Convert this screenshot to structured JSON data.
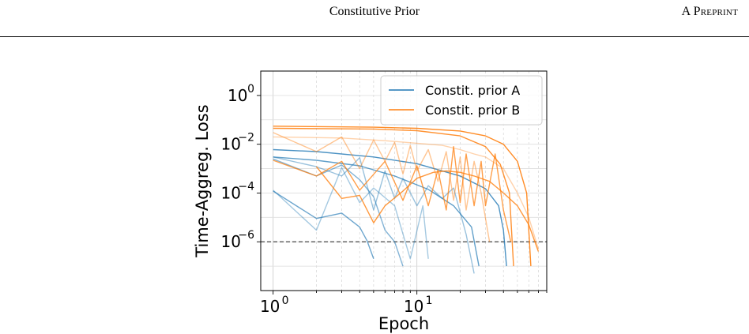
{
  "header": {
    "title": "Constitutive Prior",
    "tag": "A Preprint"
  },
  "chart_data": {
    "type": "line",
    "xlabel": "Epoch",
    "ylabel": "Time-Aggreg. Loss",
    "xscale": "log",
    "yscale": "log",
    "xlim": [
      0.82,
      80
    ],
    "ylim": [
      1e-08,
      10
    ],
    "x_ticks": [
      {
        "value": 1,
        "base": "10",
        "exp": "0"
      },
      {
        "value": 10,
        "base": "10",
        "exp": "1"
      }
    ],
    "y_ticks": [
      {
        "value": 1,
        "base": "10",
        "exp": "0"
      },
      {
        "value": 0.01,
        "base": "10",
        "exp": "−2"
      },
      {
        "value": 0.0001,
        "base": "10",
        "exp": "−4"
      },
      {
        "value": 1e-06,
        "base": "10",
        "exp": "−6"
      }
    ],
    "grid": true,
    "legend_position": "top-right",
    "reference_line": {
      "y": 1e-06,
      "style": "dashed",
      "color": "#333333"
    },
    "colors": {
      "A": "#1f77b4",
      "B": "#ff7f0e"
    },
    "series": [
      {
        "name": "Constit. prior A",
        "color": "#1f77b4",
        "opacity": 0.8,
        "x": [
          1,
          2,
          5,
          10,
          20,
          30,
          37,
          40,
          42
        ],
        "y": [
          0.006,
          0.005,
          0.003,
          0.0016,
          0.0005,
          0.00015,
          3e-05,
          3e-06,
          1e-07
        ]
      },
      {
        "name": "Constit. prior A",
        "color": "#1f77b4",
        "opacity": 0.7,
        "x": [
          1,
          2,
          4,
          7,
          12,
          18,
          24,
          27
        ],
        "y": [
          0.003,
          0.0022,
          0.0013,
          0.0005,
          0.00014,
          3e-05,
          4e-06,
          1e-07
        ]
      },
      {
        "name": "Constit. prior A",
        "color": "#1f77b4",
        "opacity": 0.55,
        "x": [
          1,
          2,
          3,
          4,
          5,
          6,
          7,
          8
        ],
        "y": [
          0.0025,
          0.0005,
          0.0014,
          0.00035,
          7e-05,
          3e-06,
          1e-06,
          1e-07
        ]
      },
      {
        "name": "Constit. prior A",
        "color": "#1f77b4",
        "opacity": 0.4,
        "x": [
          1,
          2,
          3,
          4,
          5,
          7,
          9,
          11,
          12
        ],
        "y": [
          0.00013,
          3e-06,
          0.0011,
          4e-05,
          0.00016,
          3e-05,
          2e-07,
          3e-05,
          2e-07
        ]
      },
      {
        "name": "Constit. prior A",
        "color": "#1f77b4",
        "opacity": 0.65,
        "x": [
          1,
          2,
          3,
          4,
          4.5,
          5
        ],
        "y": [
          0.00012,
          9e-06,
          1.5e-05,
          4e-06,
          1.1e-06,
          2e-07
        ]
      },
      {
        "name": "Constit. prior A",
        "color": "#1f77b4",
        "opacity": 0.45,
        "x": [
          1,
          2,
          3,
          4,
          5,
          6,
          7,
          8,
          10,
          12,
          15,
          18,
          22,
          25
        ],
        "y": [
          0.003,
          0.0012,
          0.0005,
          0.0028,
          2e-05,
          0.0008,
          6e-05,
          0.0004,
          3e-05,
          0.0002,
          6e-05,
          0.00016,
          2e-06,
          5e-08
        ]
      },
      {
        "name": "Constit. prior B",
        "color": "#ff7f0e",
        "opacity": 0.9,
        "x": [
          1,
          5,
          10,
          20,
          30,
          40,
          50,
          58,
          62
        ],
        "y": [
          0.055,
          0.05,
          0.045,
          0.035,
          0.022,
          0.01,
          0.002,
          0.0001,
          1e-07
        ]
      },
      {
        "name": "Constit. prior B",
        "color": "#ff7f0e",
        "opacity": 0.85,
        "x": [
          1,
          5,
          10,
          20,
          30,
          38,
          44,
          47
        ],
        "y": [
          0.045,
          0.042,
          0.036,
          0.022,
          0.008,
          0.0015,
          0.0001,
          1e-07
        ]
      },
      {
        "name": "Constit. prior B",
        "color": "#ff7f0e",
        "opacity": 0.75,
        "x": [
          1,
          2,
          3,
          4,
          6,
          8,
          10,
          12,
          14,
          16,
          18,
          20,
          22,
          25,
          28,
          30,
          35,
          40,
          45
        ],
        "y": [
          0.0022,
          0.0005,
          0.002,
          0.00013,
          0.002,
          5e-05,
          0.0013,
          3e-05,
          0.0009,
          2e-05,
          0.008,
          4e-05,
          0.004,
          3e-05,
          0.002,
          3e-05,
          0.004,
          2e-05,
          1e-06
        ]
      },
      {
        "name": "Constit. prior B",
        "color": "#ff7f0e",
        "opacity": 0.8,
        "x": [
          2,
          3,
          4,
          5,
          6,
          8,
          10,
          13,
          16,
          20,
          25,
          32,
          40,
          50,
          60,
          70
        ],
        "y": [
          0.0012,
          6e-05,
          8e-05,
          6e-06,
          3e-05,
          0.00012,
          0.0004,
          0.0007,
          0.0008,
          0.0007,
          0.0005,
          0.0003,
          0.0001,
          3e-05,
          5e-06,
          4e-07
        ]
      },
      {
        "name": "Constit. prior B",
        "color": "#ff7f0e",
        "opacity": 0.45,
        "x": [
          1,
          2,
          3,
          4,
          5,
          6,
          7,
          8,
          9,
          10,
          12,
          14,
          16,
          18,
          20,
          22,
          25,
          28,
          32
        ],
        "y": [
          0.03,
          0.005,
          0.02,
          0.001,
          0.015,
          0.002,
          0.012,
          0.0006,
          0.009,
          0.0008,
          0.006,
          0.0003,
          0.005,
          5e-05,
          0.003,
          2e-05,
          0.002,
          0.0001,
          1e-06
        ]
      },
      {
        "name": "Constit. prior B",
        "color": "#ff7f0e",
        "opacity": 0.35,
        "x": [
          1,
          3,
          6,
          10,
          15,
          20,
          25,
          30,
          40,
          50,
          60,
          70
        ],
        "y": [
          0.02,
          0.018,
          0.014,
          0.011,
          0.009,
          0.006,
          0.004,
          0.003,
          0.001,
          0.0001,
          1e-05,
          5e-07
        ]
      }
    ],
    "legend": [
      {
        "label": "Constit. prior A",
        "color": "#1f77b4"
      },
      {
        "label": "Constit. prior B",
        "color": "#ff7f0e"
      }
    ]
  }
}
